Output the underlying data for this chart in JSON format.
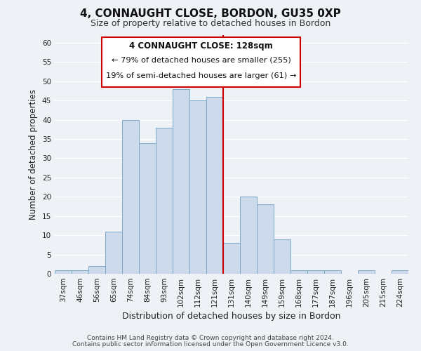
{
  "title": "4, CONNAUGHT CLOSE, BORDON, GU35 0XP",
  "subtitle": "Size of property relative to detached houses in Bordon",
  "xlabel": "Distribution of detached houses by size in Bordon",
  "ylabel": "Number of detached properties",
  "bar_color": "#ccdaeb",
  "bar_edge_color": "#7aaac8",
  "categories": [
    "37sqm",
    "46sqm",
    "56sqm",
    "65sqm",
    "74sqm",
    "84sqm",
    "93sqm",
    "102sqm",
    "112sqm",
    "121sqm",
    "131sqm",
    "140sqm",
    "149sqm",
    "159sqm",
    "168sqm",
    "177sqm",
    "187sqm",
    "196sqm",
    "205sqm",
    "215sqm",
    "224sqm"
  ],
  "values": [
    1,
    1,
    2,
    11,
    40,
    34,
    38,
    48,
    45,
    46,
    8,
    20,
    18,
    9,
    1,
    1,
    1,
    0,
    1,
    0,
    1
  ],
  "vline_index": 10,
  "vline_color": "#cc0000",
  "annotation_title": "4 CONNAUGHT CLOSE: 128sqm",
  "annotation_line1": "← 79% of detached houses are smaller (255)",
  "annotation_line2": "19% of semi-detached houses are larger (61) →",
  "annotation_box_color": "#ffffff",
  "annotation_box_edge_color": "#cc0000",
  "ylim": [
    0,
    62
  ],
  "yticks": [
    0,
    5,
    10,
    15,
    20,
    25,
    30,
    35,
    40,
    45,
    50,
    55,
    60
  ],
  "footer1": "Contains HM Land Registry data © Crown copyright and database right 2024.",
  "footer2": "Contains public sector information licensed under the Open Government Licence v3.0.",
  "background_color": "#eef2f7",
  "grid_color": "#ffffff",
  "title_fontsize": 11,
  "subtitle_fontsize": 9,
  "xlabel_fontsize": 9,
  "ylabel_fontsize": 8.5,
  "tick_fontsize": 7.5,
  "footer_fontsize": 6.5
}
